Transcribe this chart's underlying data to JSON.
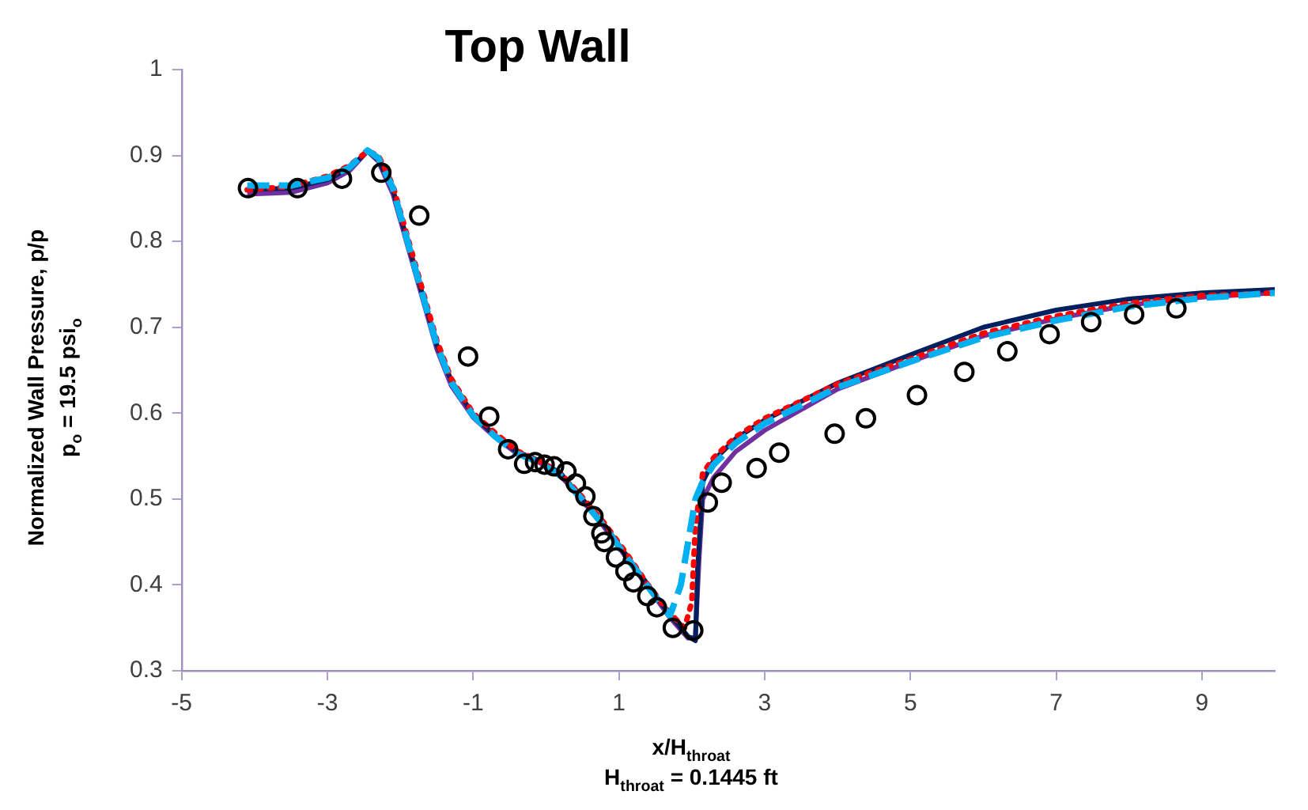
{
  "chart_data": {
    "type": "line",
    "title": "Top Wall",
    "xlabel": "x/H$_{throat}$",
    "ylabel": "Normalized Wall Pressure, p/p\np$_{o}$ = 19.5 psi$_{o}$",
    "annotations": [
      "H$_{throat}$ = 0.1445 ft"
    ],
    "xlim": [
      -5,
      10
    ],
    "xticks": [
      -5,
      -3,
      -1,
      1,
      3,
      5,
      7,
      9
    ],
    "ylim": [
      0.3,
      1
    ],
    "yticks": [
      0.3,
      0.4,
      0.5,
      0.6,
      0.7,
      0.8,
      0.9,
      1
    ],
    "grid": false,
    "legend": false,
    "series": [
      {
        "color": "#7030a0",
        "line_style": "solid",
        "marker": "none",
        "x": [
          -4.1,
          -3.5,
          -3.0,
          -2.7,
          -2.45,
          -2.3,
          -2.1,
          -1.9,
          -1.7,
          -1.5,
          -1.3,
          -1.0,
          -0.7,
          -0.4,
          -0.1,
          0.2,
          0.5,
          0.8,
          1.1,
          1.4,
          1.7,
          1.95,
          2.05,
          2.1,
          2.15,
          2.3,
          2.6,
          3.0,
          4,
          5,
          6,
          7,
          8,
          9,
          10
        ],
        "values": [
          0.855,
          0.857,
          0.868,
          0.882,
          0.905,
          0.893,
          0.855,
          0.795,
          0.735,
          0.675,
          0.632,
          0.595,
          0.572,
          0.553,
          0.543,
          0.527,
          0.498,
          0.467,
          0.432,
          0.397,
          0.362,
          0.338,
          0.34,
          0.43,
          0.5,
          0.525,
          0.555,
          0.58,
          0.628,
          0.66,
          0.69,
          0.71,
          0.726,
          0.735,
          0.74
        ]
      },
      {
        "color": "#002060",
        "line_style": "solid",
        "marker": "none",
        "x": [
          -4.1,
          -3.5,
          -3.0,
          -2.7,
          -2.45,
          -2.3,
          -2.1,
          -1.9,
          -1.7,
          -1.5,
          -1.3,
          -1.0,
          -0.7,
          -0.4,
          -0.1,
          0.2,
          0.5,
          0.8,
          1.1,
          1.4,
          1.7,
          1.95,
          2.05,
          2.08,
          2.15,
          2.3,
          2.6,
          3.0,
          4,
          5,
          6,
          7,
          8,
          9,
          10
        ],
        "values": [
          0.86,
          0.862,
          0.872,
          0.885,
          0.905,
          0.895,
          0.86,
          0.8,
          0.74,
          0.68,
          0.638,
          0.598,
          0.574,
          0.555,
          0.545,
          0.53,
          0.5,
          0.47,
          0.435,
          0.4,
          0.365,
          0.34,
          0.335,
          0.42,
          0.52,
          0.545,
          0.57,
          0.592,
          0.635,
          0.668,
          0.7,
          0.72,
          0.733,
          0.74,
          0.744
        ]
      },
      {
        "color": "#ff0000",
        "line_style": "dotted",
        "marker": "none",
        "x": [
          -4.1,
          -3.5,
          -3.0,
          -2.7,
          -2.45,
          -2.3,
          -2.1,
          -1.9,
          -1.7,
          -1.5,
          -1.3,
          -1.0,
          -0.7,
          -0.4,
          -0.1,
          0.2,
          0.5,
          0.8,
          1.1,
          1.4,
          1.7,
          1.9,
          2.0,
          2.05,
          2.15,
          2.3,
          2.6,
          3.0,
          4,
          5,
          6,
          7,
          8,
          9,
          10
        ],
        "values": [
          0.86,
          0.864,
          0.876,
          0.888,
          0.905,
          0.9,
          0.865,
          0.805,
          0.745,
          0.685,
          0.64,
          0.6,
          0.577,
          0.556,
          0.545,
          0.53,
          0.502,
          0.472,
          0.437,
          0.4,
          0.367,
          0.35,
          0.38,
          0.47,
          0.53,
          0.548,
          0.572,
          0.594,
          0.634,
          0.663,
          0.693,
          0.713,
          0.728,
          0.737,
          0.74
        ]
      },
      {
        "color": "#00b0f0",
        "line_style": "dashed",
        "marker": "none",
        "x": [
          -4.1,
          -3.5,
          -3.0,
          -2.7,
          -2.45,
          -2.3,
          -2.1,
          -1.9,
          -1.7,
          -1.5,
          -1.3,
          -1.0,
          -0.7,
          -0.4,
          -0.1,
          0.2,
          0.5,
          0.8,
          1.1,
          1.4,
          1.7,
          1.85,
          1.95,
          2.05,
          2.15,
          2.3,
          2.6,
          3.0,
          4,
          5,
          6,
          7,
          8,
          9,
          10
        ],
        "values": [
          0.865,
          0.865,
          0.874,
          0.886,
          0.906,
          0.897,
          0.862,
          0.8,
          0.74,
          0.68,
          0.636,
          0.597,
          0.573,
          0.553,
          0.543,
          0.527,
          0.499,
          0.468,
          0.433,
          0.398,
          0.364,
          0.4,
          0.45,
          0.5,
          0.52,
          0.54,
          0.565,
          0.588,
          0.63,
          0.66,
          0.688,
          0.708,
          0.724,
          0.734,
          0.74
        ]
      },
      {
        "type": "scatter",
        "color": "#000000",
        "marker": "circle",
        "x": [
          -4.09,
          -3.41,
          -2.8,
          -2.26,
          -1.74,
          -1.07,
          -0.78,
          -0.52,
          -0.3,
          -0.15,
          -0.02,
          0.11,
          0.28,
          0.41,
          0.54,
          0.65,
          0.76,
          0.8,
          0.96,
          1.09,
          1.2,
          1.39,
          1.52,
          1.74,
          2.02,
          2.22,
          2.41,
          2.89,
          3.2,
          3.96,
          4.39,
          5.09,
          5.74,
          6.33,
          6.91,
          7.48,
          8.07,
          8.65
        ],
        "values": [
          0.862,
          0.862,
          0.873,
          0.88,
          0.83,
          0.666,
          0.596,
          0.558,
          0.541,
          0.543,
          0.54,
          0.538,
          0.532,
          0.518,
          0.503,
          0.48,
          0.46,
          0.45,
          0.432,
          0.416,
          0.403,
          0.387,
          0.374,
          0.35,
          0.347,
          0.496,
          0.519,
          0.536,
          0.554,
          0.576,
          0.594,
          0.621,
          0.648,
          0.672,
          0.692,
          0.706,
          0.715,
          0.722
        ]
      }
    ]
  }
}
